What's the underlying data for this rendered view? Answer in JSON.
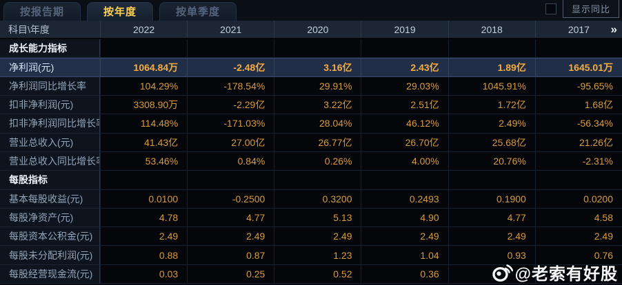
{
  "tabs": [
    {
      "label": "按报告期",
      "active": false
    },
    {
      "label": "按年度",
      "active": true
    },
    {
      "label": "按单季度",
      "active": false
    }
  ],
  "controls": {
    "show_yoy": "显示同比",
    "checkbox_checked": false
  },
  "colors": {
    "value_orange": "#d89b3e",
    "highlight_value_orange": "#f5ac41",
    "active_tab_yellow": "#ffd04f",
    "highlight_row_bg": "#212e47",
    "header_bg": "#1c2634"
  },
  "table": {
    "corner_label": "科目\\年度",
    "years": [
      "2022",
      "2021",
      "2020",
      "2019",
      "2018",
      "2017"
    ],
    "more_icon": "»",
    "rows": [
      {
        "type": "section",
        "label": "成长能力指标"
      },
      {
        "type": "data",
        "label": "净利润(元)",
        "highlight": true,
        "values": [
          "1064.84万",
          "-2.48亿",
          "3.16亿",
          "2.43亿",
          "1.89亿",
          "1645.01万"
        ]
      },
      {
        "type": "data",
        "label": "净利润同比增长率",
        "values": [
          "104.29%",
          "-178.54%",
          "29.91%",
          "29.03%",
          "1045.91%",
          "-95.65%"
        ]
      },
      {
        "type": "data",
        "label": "扣非净利润(元)",
        "values": [
          "3308.90万",
          "-2.29亿",
          "3.22亿",
          "2.51亿",
          "1.72亿",
          "1.68亿"
        ]
      },
      {
        "type": "data",
        "label": "扣非净利润同比增长率",
        "values": [
          "114.48%",
          "-171.03%",
          "28.04%",
          "46.12%",
          "2.49%",
          "-56.34%"
        ]
      },
      {
        "type": "data",
        "label": "营业总收入(元)",
        "values": [
          "41.43亿",
          "27.00亿",
          "26.77亿",
          "26.70亿",
          "25.68亿",
          "21.26亿"
        ]
      },
      {
        "type": "data",
        "label": "营业总收入同比增长率",
        "values": [
          "53.46%",
          "0.84%",
          "0.26%",
          "4.00%",
          "20.76%",
          "-2.31%"
        ]
      },
      {
        "type": "section",
        "label": "每股指标"
      },
      {
        "type": "data",
        "label": "基本每股收益(元)",
        "values": [
          "0.0100",
          "-0.2500",
          "0.3200",
          "0.2493",
          "0.1900",
          "0.0200"
        ]
      },
      {
        "type": "data",
        "label": "每股净资产(元)",
        "values": [
          "4.78",
          "4.77",
          "5.13",
          "4.90",
          "4.77",
          "4.58"
        ]
      },
      {
        "type": "data",
        "label": "每股资本公积金(元)",
        "values": [
          "2.49",
          "2.49",
          "2.49",
          "2.49",
          "2.49",
          "2.49"
        ]
      },
      {
        "type": "data",
        "label": "每股未分配利润(元)",
        "values": [
          "0.88",
          "0.87",
          "1.23",
          "1.04",
          "0.93",
          "0.76"
        ]
      },
      {
        "type": "data",
        "label": "每股经营现金流(元)",
        "values": [
          "0.03",
          "0.25",
          "0.52",
          "0.36",
          "",
          ""
        ]
      }
    ]
  },
  "watermark": {
    "icon": "weibo-icon",
    "text": "@老索有好股"
  }
}
